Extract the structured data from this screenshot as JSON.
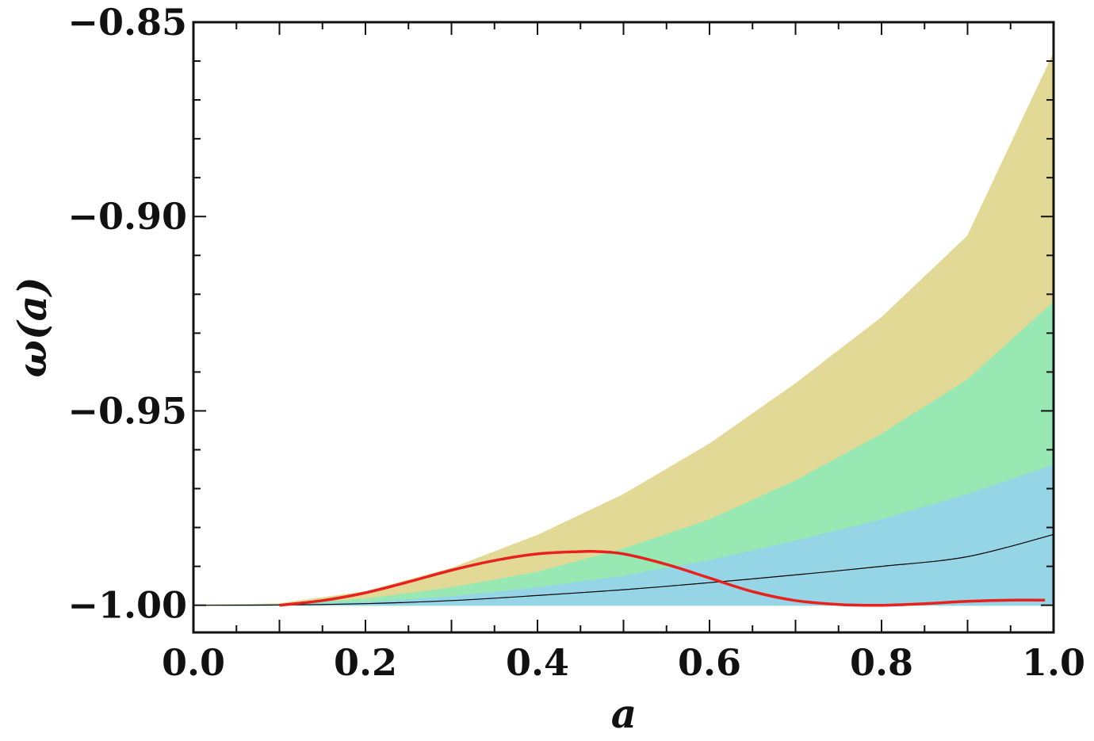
{
  "chart_data": {
    "type": "area",
    "xlabel": "a",
    "ylabel": "ω(a)",
    "xlim": [
      0.0,
      1.0
    ],
    "ylim": [
      -1.007,
      -0.85
    ],
    "grid": false,
    "x_ticks": [
      0.0,
      0.2,
      0.4,
      0.6,
      0.8,
      1.0
    ],
    "x_tick_labels": [
      "0.0",
      "0.2",
      "0.4",
      "0.6",
      "0.8",
      "1.0"
    ],
    "y_ticks": [
      -1.0,
      -0.95,
      -0.9,
      -0.85
    ],
    "y_tick_labels": [
      "−1.00",
      "−0.95",
      "−0.90",
      "−0.85"
    ],
    "x": [
      0.0,
      0.1,
      0.2,
      0.3,
      0.4,
      0.5,
      0.6,
      0.7,
      0.8,
      0.9,
      1.0
    ],
    "bands": [
      {
        "color": "#e3d996",
        "lower": [
          -1.0,
          -1.0,
          -1.0,
          -1.0,
          -1.0,
          -1.0,
          -1.0,
          -1.0,
          -1.0,
          -1.0,
          -1.0
        ],
        "upper": [
          -1.0,
          -0.9996,
          -0.9965,
          -0.9905,
          -0.982,
          -0.9715,
          -0.9585,
          -0.943,
          -0.926,
          -0.905,
          -0.858
        ]
      },
      {
        "color": "#97e8b3",
        "lower": [
          -1.0,
          -1.0,
          -1.0,
          -1.0,
          -1.0,
          -1.0,
          -1.0,
          -1.0,
          -1.0,
          -1.0,
          -1.0
        ],
        "upper": [
          -1.0,
          -0.9998,
          -0.9984,
          -0.9955,
          -0.9915,
          -0.9855,
          -0.978,
          -0.968,
          -0.956,
          -0.942,
          -0.922
        ]
      },
      {
        "color": "#96d5e6",
        "lower": [
          -1.0,
          -1.0,
          -1.0,
          -1.0,
          -1.0,
          -1.0,
          -1.0,
          -1.0,
          -1.0,
          -1.0,
          -1.0
        ],
        "upper": [
          -1.0,
          -0.9999,
          -0.9993,
          -0.9978,
          -0.9955,
          -0.9925,
          -0.9885,
          -0.9835,
          -0.978,
          -0.9715,
          -0.964
        ]
      }
    ],
    "lines": [
      {
        "color": "#000000",
        "width": 1.2,
        "x": [
          0.0,
          0.1,
          0.2,
          0.3,
          0.4,
          0.5,
          0.6,
          0.7,
          0.8,
          0.9,
          1.0
        ],
        "y": [
          -1.0,
          -0.99995,
          -0.9996,
          -0.9988,
          -0.9975,
          -0.996,
          -0.9942,
          -0.9922,
          -0.99,
          -0.9875,
          -0.9818
        ]
      },
      {
        "color": "#e8201e",
        "width": 3.5,
        "x": [
          0.1,
          0.15,
          0.2,
          0.25,
          0.3,
          0.35,
          0.4,
          0.45,
          0.47,
          0.5,
          0.55,
          0.6,
          0.65,
          0.7,
          0.75,
          0.8,
          0.85,
          0.9,
          0.95,
          0.99
        ],
        "y": [
          -1.0,
          -0.9988,
          -0.9968,
          -0.994,
          -0.991,
          -0.9885,
          -0.9868,
          -0.9862,
          -0.9862,
          -0.9868,
          -0.9895,
          -0.993,
          -0.9965,
          -0.9988,
          -0.9998,
          -1.0,
          -0.9996,
          -0.999,
          -0.9987,
          -0.9987
        ]
      }
    ]
  }
}
